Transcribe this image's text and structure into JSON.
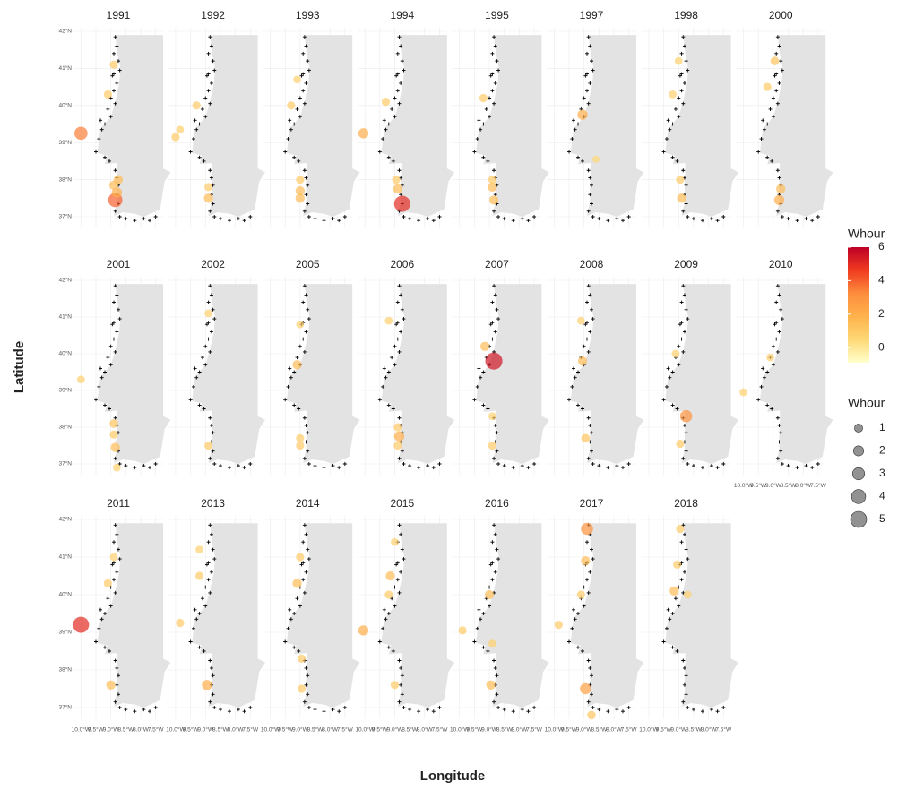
{
  "chart_data": {
    "type": "bubble-map-facets",
    "x_label": "Longitude",
    "y_label": "Latitude",
    "xlim": [
      -10.25,
      -7.25
    ],
    "ylim": [
      36.7,
      42.1
    ],
    "xticks": [
      {
        "value": -10.0,
        "label": "10.0°W"
      },
      {
        "value": -9.5,
        "label": "9.5°W"
      },
      {
        "value": -9.0,
        "label": "9.0°W"
      },
      {
        "value": -8.5,
        "label": "8.5°W"
      },
      {
        "value": -8.0,
        "label": "8.0°W"
      },
      {
        "value": -7.5,
        "label": "7.5°W"
      }
    ],
    "yticks": [
      {
        "value": 37,
        "label": "37°N"
      },
      {
        "value": 38,
        "label": "38°N"
      },
      {
        "value": 39,
        "label": "39°N"
      },
      {
        "value": 40,
        "label": "40°N"
      },
      {
        "value": 41,
        "label": "41°N"
      },
      {
        "value": 42,
        "label": "42°N"
      }
    ],
    "grid": true,
    "color_legend": {
      "title": "Whour",
      "lim": [
        -0.9,
        6
      ],
      "ticks": [
        0,
        2,
        4,
        6
      ],
      "palette": [
        "#ffffcc",
        "#fed976",
        "#feb24c",
        "#fd8d3c",
        "#f03b20",
        "#bd0026"
      ]
    },
    "size_legend": {
      "title": "Whour",
      "breaks": [
        1,
        2,
        3,
        4,
        5
      ]
    },
    "stations": {
      "lon": [
        -8.85,
        -8.8,
        -8.9,
        -8.75,
        -8.7,
        -8.95,
        -8.8,
        -8.9,
        -9.0,
        -8.85,
        -9.1,
        -9.0,
        -9.2,
        -9.3,
        -9.4,
        -9.5,
        -9.2,
        -9.05,
        -8.85,
        -8.8,
        -8.75,
        -8.8,
        -8.75,
        -8.85,
        -8.7,
        -8.5,
        -8.2,
        -7.9,
        -7.7,
        -7.5,
        -8.9,
        -9.35
      ],
      "lat": [
        41.85,
        41.6,
        41.4,
        41.2,
        40.95,
        40.8,
        40.6,
        40.4,
        40.2,
        40.05,
        39.9,
        39.7,
        39.5,
        39.35,
        39.1,
        38.75,
        38.6,
        38.5,
        38.25,
        38.05,
        37.85,
        37.6,
        37.35,
        37.15,
        37.0,
        36.95,
        36.9,
        36.95,
        36.9,
        37.0,
        40.85,
        39.6
      ]
    },
    "facets": [
      {
        "title": "1991",
        "lon": [
          -10.0,
          -8.85,
          -8.8,
          -8.75,
          -9.1,
          -8.9,
          -8.9
        ],
        "lat": [
          39.25,
          37.45,
          37.65,
          38.0,
          40.3,
          41.1,
          37.85
        ],
        "whour": [
          3.5,
          4,
          2,
          1.5,
          1,
          1,
          1.5
        ]
      },
      {
        "title": "1992",
        "lon": [
          -10.0,
          -9.85,
          -8.9,
          -8.9,
          -9.3
        ],
        "lat": [
          39.15,
          39.35,
          37.5,
          37.8,
          40.0
        ],
        "whour": [
          1,
          0.8,
          1.5,
          1,
          1
        ]
      },
      {
        "title": "1993",
        "lon": [
          -9.0,
          -9.0,
          -9.0,
          -9.3,
          -9.1
        ],
        "lat": [
          37.5,
          37.7,
          38.0,
          40.0,
          40.7
        ],
        "whour": [
          1.5,
          1.5,
          1,
          1,
          0.8
        ]
      },
      {
        "title": "1994",
        "lon": [
          -8.75,
          -10.05,
          -8.9,
          -8.95,
          -9.3
        ],
        "lat": [
          37.35,
          39.25,
          37.75,
          38.0,
          40.1
        ],
        "whour": [
          5,
          2,
          1.5,
          1,
          1
        ]
      },
      {
        "title": "1995",
        "lon": [
          -8.85,
          -8.9,
          -9.2,
          -8.9
        ],
        "lat": [
          37.45,
          37.8,
          40.2,
          38.0
        ],
        "whour": [
          1.5,
          1.5,
          1,
          1
        ]
      },
      {
        "title": "1997",
        "lon": [
          -9.05,
          -8.6
        ],
        "lat": [
          39.75,
          38.55
        ],
        "whour": [
          2,
          0.5
        ]
      },
      {
        "title": "1998",
        "lon": [
          -8.9,
          -8.95,
          -9.2,
          -9.0
        ],
        "lat": [
          37.5,
          38.0,
          40.3,
          41.2
        ],
        "whour": [
          1.5,
          1,
          0.8,
          0.8
        ]
      },
      {
        "title": "2000",
        "lon": [
          -8.8,
          -8.75,
          -8.95,
          -9.2
        ],
        "lat": [
          37.45,
          37.75,
          41.2,
          40.5
        ],
        "whour": [
          2,
          1.5,
          1.2,
          1
        ]
      },
      {
        "title": "2001",
        "lon": [
          -8.85,
          -8.9,
          -10.0,
          -8.8,
          -8.9
        ],
        "lat": [
          37.45,
          38.1,
          39.3,
          36.9,
          37.8
        ],
        "whour": [
          1.5,
          1.2,
          0.8,
          0.8,
          1
        ]
      },
      {
        "title": "2002",
        "lon": [
          -8.9,
          -8.9
        ],
        "lat": [
          37.5,
          41.1
        ],
        "whour": [
          1,
          0.8
        ]
      },
      {
        "title": "2005",
        "lon": [
          -9.1,
          -9.0,
          -9.0,
          -9.0
        ],
        "lat": [
          39.7,
          37.5,
          37.7,
          40.8
        ],
        "whour": [
          1.5,
          1,
          1,
          0.8
        ]
      },
      {
        "title": "2006",
        "lon": [
          -8.85,
          -8.9,
          -8.9,
          -9.2
        ],
        "lat": [
          37.75,
          38.0,
          37.5,
          40.9
        ],
        "whour": [
          2,
          1,
          1,
          0.8
        ]
      },
      {
        "title": "2007",
        "lon": [
          -8.85,
          -9.15,
          -8.9,
          -8.9
        ],
        "lat": [
          39.8,
          40.2,
          37.5,
          38.3
        ],
        "whour": [
          5.5,
          1.5,
          1,
          0.8
        ]
      },
      {
        "title": "2008",
        "lon": [
          -8.95,
          -9.05,
          -9.1
        ],
        "lat": [
          37.7,
          39.8,
          40.9
        ],
        "whour": [
          1.2,
          1.5,
          0.8
        ]
      },
      {
        "title": "2009",
        "lon": [
          -8.75,
          -8.95,
          -9.1
        ],
        "lat": [
          38.3,
          37.55,
          40.0
        ],
        "whour": [
          3,
          1,
          0.8
        ]
      },
      {
        "title": "2010",
        "lon": [
          -10.0,
          -9.1
        ],
        "lat": [
          38.95,
          39.9
        ],
        "whour": [
          0.8,
          0.8
        ]
      },
      {
        "title": "2011",
        "lon": [
          -10.0,
          -9.0,
          -9.1,
          -8.9
        ],
        "lat": [
          39.2,
          37.6,
          40.3,
          41.0
        ],
        "whour": [
          5,
          1.5,
          1,
          0.8
        ]
      },
      {
        "title": "2013",
        "lon": [
          -8.95,
          -9.85,
          -9.2,
          -9.2
        ],
        "lat": [
          37.6,
          39.25,
          40.5,
          41.2
        ],
        "whour": [
          2,
          1,
          1,
          0.8
        ]
      },
      {
        "title": "2014",
        "lon": [
          -9.1,
          -8.95,
          -8.95,
          -9.0
        ],
        "lat": [
          40.3,
          37.5,
          38.3,
          41.0
        ],
        "whour": [
          1.5,
          1,
          1,
          1
        ]
      },
      {
        "title": "2015",
        "lon": [
          -10.05,
          -9.15,
          -9.0,
          -9.2,
          -9.0
        ],
        "lat": [
          39.05,
          40.5,
          37.6,
          40.0,
          41.4
        ],
        "whour": [
          2,
          1.5,
          1,
          1,
          0.8
        ]
      },
      {
        "title": "2016",
        "lon": [
          -8.95,
          -9.0,
          -9.9,
          -8.9
        ],
        "lat": [
          37.6,
          40.0,
          39.05,
          38.7
        ],
        "whour": [
          1.5,
          1.5,
          1,
          0.8
        ]
      },
      {
        "title": "2017",
        "lon": [
          -8.9,
          -8.95,
          -8.95,
          -9.85,
          -8.75,
          -9.1
        ],
        "lat": [
          41.75,
          37.5,
          40.9,
          39.2,
          36.8,
          40.0
        ],
        "whour": [
          3,
          2.5,
          1.5,
          1,
          1.2,
          1
        ]
      },
      {
        "title": "2018",
        "lon": [
          -9.15,
          -8.95,
          -9.05,
          -8.7
        ],
        "lat": [
          40.1,
          41.75,
          40.8,
          40.0
        ],
        "whour": [
          1.5,
          1,
          1,
          0.8
        ]
      }
    ]
  }
}
